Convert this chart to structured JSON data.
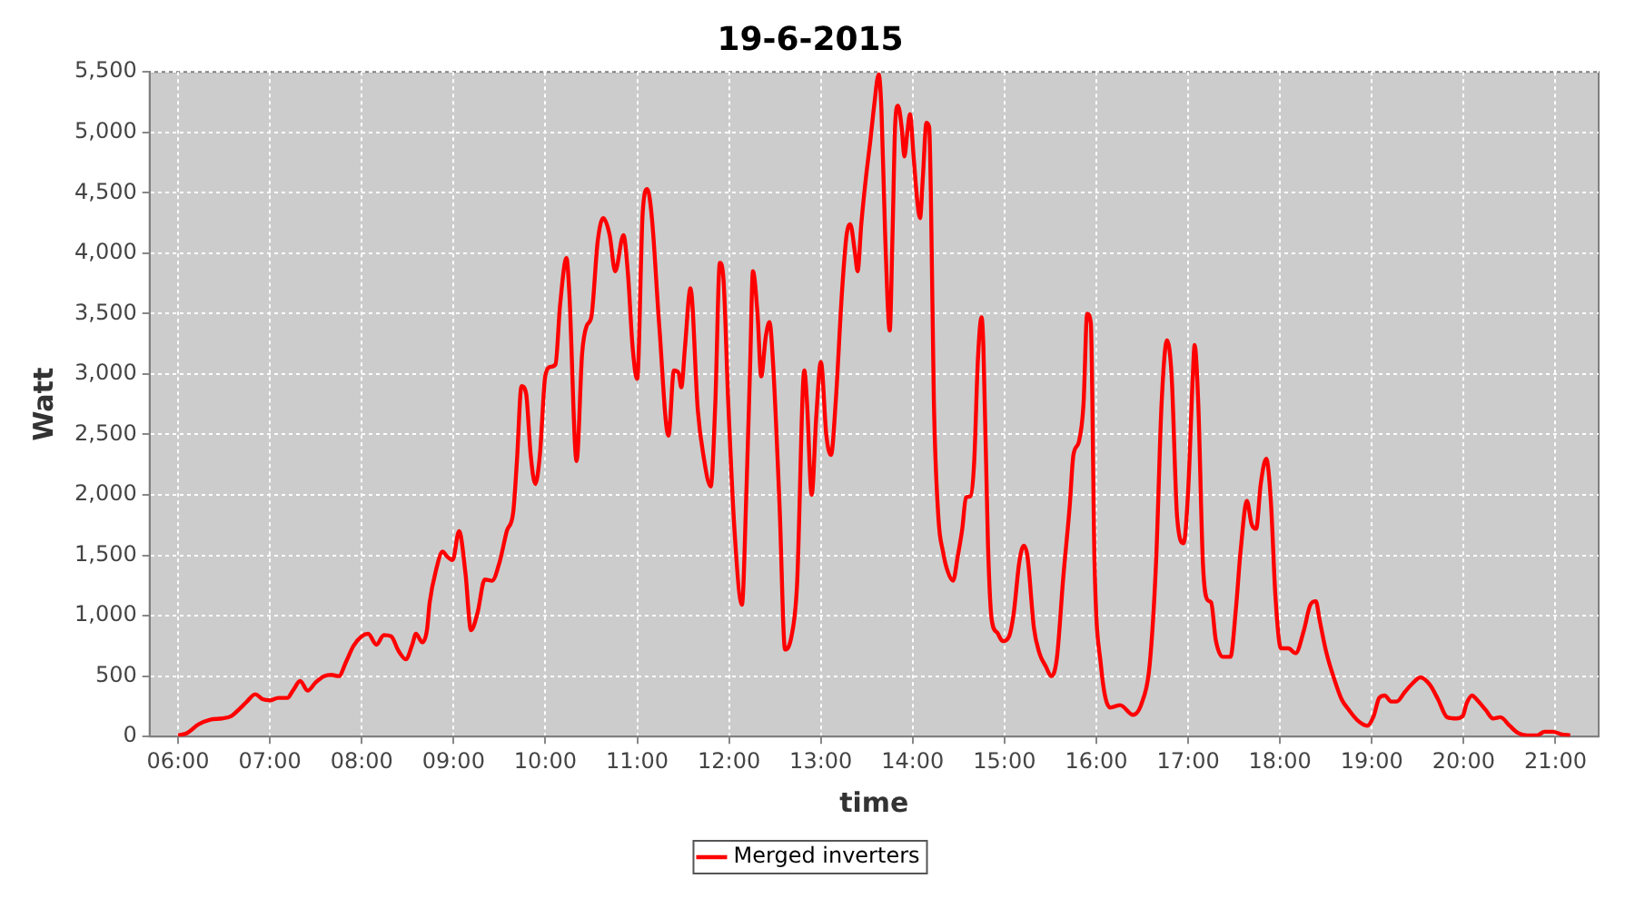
{
  "chart_data": {
    "type": "line",
    "title": "19-6-2015",
    "xlabel": "time",
    "ylabel": "Watt",
    "grid": true,
    "legend": "bottom",
    "marker": "none",
    "line_style": "solid",
    "xlim": [
      5.69,
      21.47
    ],
    "xticks": [
      {
        "value": 6,
        "label": "06:00"
      },
      {
        "value": 7,
        "label": "07:00"
      },
      {
        "value": 8,
        "label": "08:00"
      },
      {
        "value": 9,
        "label": "09:00"
      },
      {
        "value": 10,
        "label": "10:00"
      },
      {
        "value": 11,
        "label": "11:00"
      },
      {
        "value": 12,
        "label": "12:00"
      },
      {
        "value": 13,
        "label": "13:00"
      },
      {
        "value": 14,
        "label": "14:00"
      },
      {
        "value": 15,
        "label": "15:00"
      },
      {
        "value": 16,
        "label": "16:00"
      },
      {
        "value": 17,
        "label": "17:00"
      },
      {
        "value": 18,
        "label": "18:00"
      },
      {
        "value": 19,
        "label": "19:00"
      },
      {
        "value": 20,
        "label": "20:00"
      },
      {
        "value": 21,
        "label": "21:00"
      }
    ],
    "ylim": [
      0,
      5500
    ],
    "yticks": [
      0,
      500,
      {
        "value": 1000,
        "label": "1,000"
      },
      {
        "value": 1500,
        "label": "1,500"
      },
      {
        "value": 2000,
        "label": "2,000"
      },
      {
        "value": 2500,
        "label": "2,500"
      },
      {
        "value": 3000,
        "label": "3,000"
      },
      {
        "value": 3500,
        "label": "3,500"
      },
      {
        "value": 4000,
        "label": "4,000"
      },
      {
        "value": 4500,
        "label": "4,500"
      },
      {
        "value": 5000,
        "label": "5,000"
      },
      {
        "value": 5500,
        "label": "5,500"
      }
    ],
    "series": [
      {
        "name": "Merged inverters",
        "color": "#ff0000",
        "x": [
          6.0,
          6.1,
          6.22,
          6.35,
          6.48,
          6.58,
          6.67,
          6.75,
          6.84,
          6.92,
          7.0,
          7.09,
          7.19,
          7.25,
          7.33,
          7.41,
          7.5,
          7.59,
          7.67,
          7.75,
          7.83,
          7.91,
          8.0,
          8.07,
          8.16,
          8.24,
          8.32,
          8.4,
          8.48,
          8.55,
          8.59,
          8.66,
          8.71,
          8.74,
          8.81,
          8.88,
          8.93,
          8.99,
          9.06,
          9.13,
          9.19,
          9.26,
          9.34,
          9.42,
          9.5,
          9.58,
          9.65,
          9.69,
          9.74,
          9.79,
          9.84,
          9.89,
          9.94,
          10.0,
          10.06,
          10.11,
          10.16,
          10.23,
          10.26,
          10.34,
          10.4,
          10.45,
          10.5,
          10.57,
          10.63,
          10.7,
          10.76,
          10.85,
          10.9,
          10.95,
          11.0,
          11.06,
          11.11,
          11.16,
          11.24,
          11.34,
          11.4,
          11.45,
          11.48,
          11.52,
          11.58,
          11.66,
          11.72,
          11.8,
          11.85,
          11.9,
          11.94,
          11.99,
          12.06,
          12.14,
          12.19,
          12.23,
          12.26,
          12.31,
          12.35,
          12.4,
          12.44,
          12.48,
          12.55,
          12.61,
          12.68,
          12.74,
          12.82,
          12.85,
          12.9,
          12.95,
          13.0,
          13.06,
          13.11,
          13.16,
          13.23,
          13.28,
          13.32,
          13.37,
          13.4,
          13.44,
          13.49,
          13.54,
          13.58,
          13.63,
          13.66,
          13.7,
          13.75,
          13.78,
          13.81,
          13.84,
          13.88,
          13.91,
          13.94,
          13.97,
          14.01,
          14.05,
          14.08,
          14.11,
          14.15,
          14.18,
          14.2,
          14.23,
          14.28,
          14.33,
          14.38,
          14.44,
          14.49,
          14.54,
          14.58,
          14.63,
          14.67,
          14.71,
          14.75,
          14.77,
          14.82,
          14.86,
          14.92,
          14.98,
          15.05,
          15.1,
          15.16,
          15.21,
          15.25,
          15.32,
          15.38,
          15.45,
          15.51,
          15.57,
          15.64,
          15.71,
          15.75,
          15.81,
          15.86,
          15.9,
          15.94,
          15.98,
          16.05,
          16.15,
          16.26,
          16.4,
          16.5,
          16.58,
          16.65,
          16.71,
          16.77,
          16.82,
          16.88,
          16.95,
          17.0,
          17.05,
          17.07,
          17.11,
          17.16,
          17.21,
          17.25,
          17.3,
          17.38,
          17.46,
          17.52,
          17.57,
          17.64,
          17.69,
          17.74,
          17.79,
          17.85,
          17.9,
          17.95,
          18.01,
          18.09,
          18.17,
          18.26,
          18.33,
          18.39,
          18.43,
          18.5,
          18.58,
          18.67,
          18.75,
          18.85,
          18.95,
          19.02,
          19.08,
          19.14,
          19.21,
          19.27,
          19.36,
          19.43,
          19.53,
          19.63,
          19.72,
          19.82,
          19.92,
          19.99,
          20.03,
          20.09,
          20.15,
          20.24,
          20.32,
          20.4,
          20.5,
          20.59,
          20.69,
          20.8,
          20.88,
          20.97,
          21.06,
          21.16
        ],
        "values": [
          10,
          30,
          100,
          140,
          150,
          170,
          230,
          290,
          350,
          310,
          300,
          320,
          320,
          380,
          460,
          380,
          450,
          500,
          510,
          500,
          620,
          750,
          830,
          850,
          760,
          840,
          830,
          710,
          640,
          760,
          850,
          780,
          880,
          1110,
          1380,
          1530,
          1490,
          1460,
          1700,
          1350,
          880,
          1020,
          1300,
          1290,
          1440,
          1700,
          1860,
          2280,
          2900,
          2840,
          2330,
          2090,
          2330,
          2990,
          3060,
          3080,
          3570,
          3960,
          3680,
          2280,
          3170,
          3400,
          3470,
          4100,
          4290,
          4150,
          3850,
          4150,
          3820,
          3220,
          2960,
          4340,
          4530,
          4290,
          3400,
          2490,
          3030,
          3010,
          2890,
          3220,
          3710,
          2700,
          2330,
          2070,
          2750,
          3920,
          3780,
          2790,
          1700,
          1090,
          2050,
          3080,
          3850,
          3500,
          2980,
          3310,
          3430,
          3080,
          1910,
          720,
          830,
          1250,
          3030,
          2750,
          2000,
          2650,
          3100,
          2490,
          2330,
          2750,
          3680,
          4150,
          4240,
          4010,
          3850,
          4240,
          4620,
          4940,
          5220,
          5480,
          5180,
          4150,
          3360,
          4150,
          5080,
          5220,
          5040,
          4800,
          4990,
          5150,
          4800,
          4430,
          4290,
          4620,
          5080,
          5040,
          4380,
          2790,
          1810,
          1530,
          1370,
          1290,
          1490,
          1720,
          1980,
          1990,
          2280,
          3120,
          3470,
          3220,
          1580,
          970,
          860,
          790,
          830,
          1020,
          1440,
          1580,
          1490,
          900,
          690,
          580,
          500,
          650,
          1320,
          1910,
          2330,
          2440,
          2750,
          3500,
          3420,
          1440,
          590,
          240,
          260,
          180,
          290,
          590,
          1440,
          2750,
          3280,
          2980,
          1810,
          1600,
          2040,
          2980,
          3240,
          2750,
          1440,
          1130,
          1110,
          800,
          660,
          660,
          1060,
          1530,
          1950,
          1760,
          1720,
          2090,
          2300,
          1950,
          1160,
          730,
          730,
          690,
          880,
          1090,
          1120,
          970,
          710,
          500,
          310,
          220,
          130,
          90,
          170,
          320,
          340,
          290,
          290,
          370,
          430,
          490,
          430,
          310,
          160,
          150,
          170,
          270,
          340,
          300,
          220,
          150,
          160,
          90,
          30,
          10,
          10,
          40,
          40,
          20,
          10
        ]
      }
    ]
  }
}
